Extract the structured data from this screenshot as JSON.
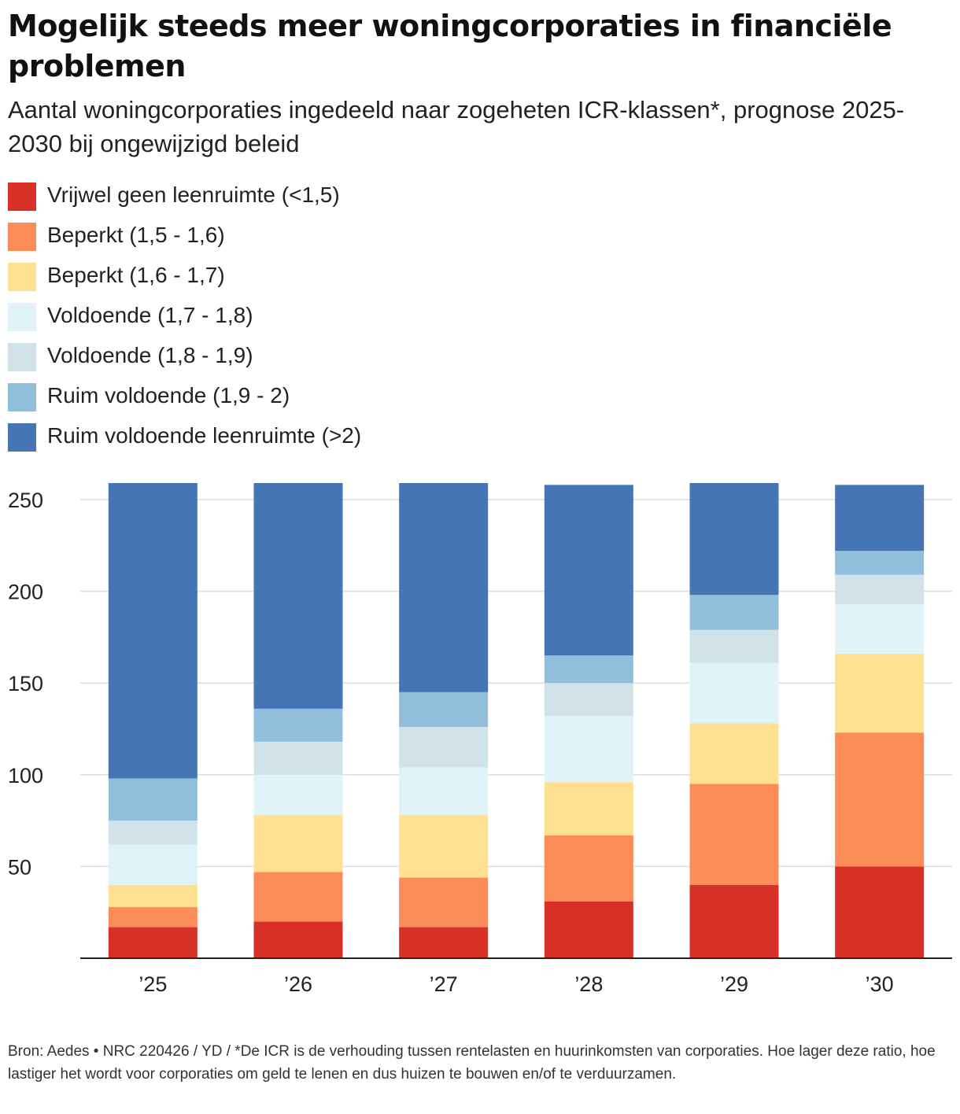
{
  "title": "Mogelijk steeds meer woningcorporaties in financiële problemen",
  "subtitle": "Aantal woningcorporaties ingedeeld naar zogeheten ICR-klassen*, prognose 2025-2030 bij ongewijzigd beleid",
  "source": "Bron: Aedes  •  NRC 220426 / YD / *De ICR is de verhouding tussen rentelasten en huurinkomsten van corporaties. Hoe lager deze ratio, hoe lastiger het wordt voor corporaties om geld te lenen en dus huizen te bouwen en/of te verduurzamen.",
  "chart_data": {
    "type": "bar",
    "stacked": true,
    "categories": [
      "’25",
      "’26",
      "’27",
      "’28",
      "’29",
      "’30"
    ],
    "yticks": [
      50,
      100,
      150,
      200,
      250
    ],
    "ylim": [
      0,
      260
    ],
    "grid": true,
    "legend_placement": "top-left",
    "series": [
      {
        "name": "Vrijwel geen leenruimte (<1,5)",
        "color": "#d73027",
        "values": [
          17,
          20,
          17,
          31,
          40,
          50
        ]
      },
      {
        "name": "Beperkt (1,5 - 1,6)",
        "color": "#fc8d59",
        "values": [
          11,
          27,
          27,
          36,
          55,
          73
        ]
      },
      {
        "name": "Beperkt (1,6 - 1,7)",
        "color": "#fee090",
        "values": [
          12,
          31,
          34,
          29,
          33,
          43
        ]
      },
      {
        "name": "Voldoende (1,7 - 1,8)",
        "color": "#e0f3f8",
        "values": [
          22,
          22,
          26,
          36,
          33,
          27
        ]
      },
      {
        "name": "Voldoende (1,8 - 1,9)",
        "color": "#d1e3e8",
        "values": [
          13,
          18,
          22,
          18,
          18,
          16
        ]
      },
      {
        "name": "Ruim voldoende (1,9 - 2)",
        "color": "#91bfdb",
        "values": [
          23,
          18,
          19,
          15,
          19,
          13
        ]
      },
      {
        "name": "Ruim voldoende leenruimte (>2)",
        "color": "#4575b4",
        "values": [
          161,
          123,
          114,
          93,
          61,
          36
        ]
      }
    ]
  }
}
